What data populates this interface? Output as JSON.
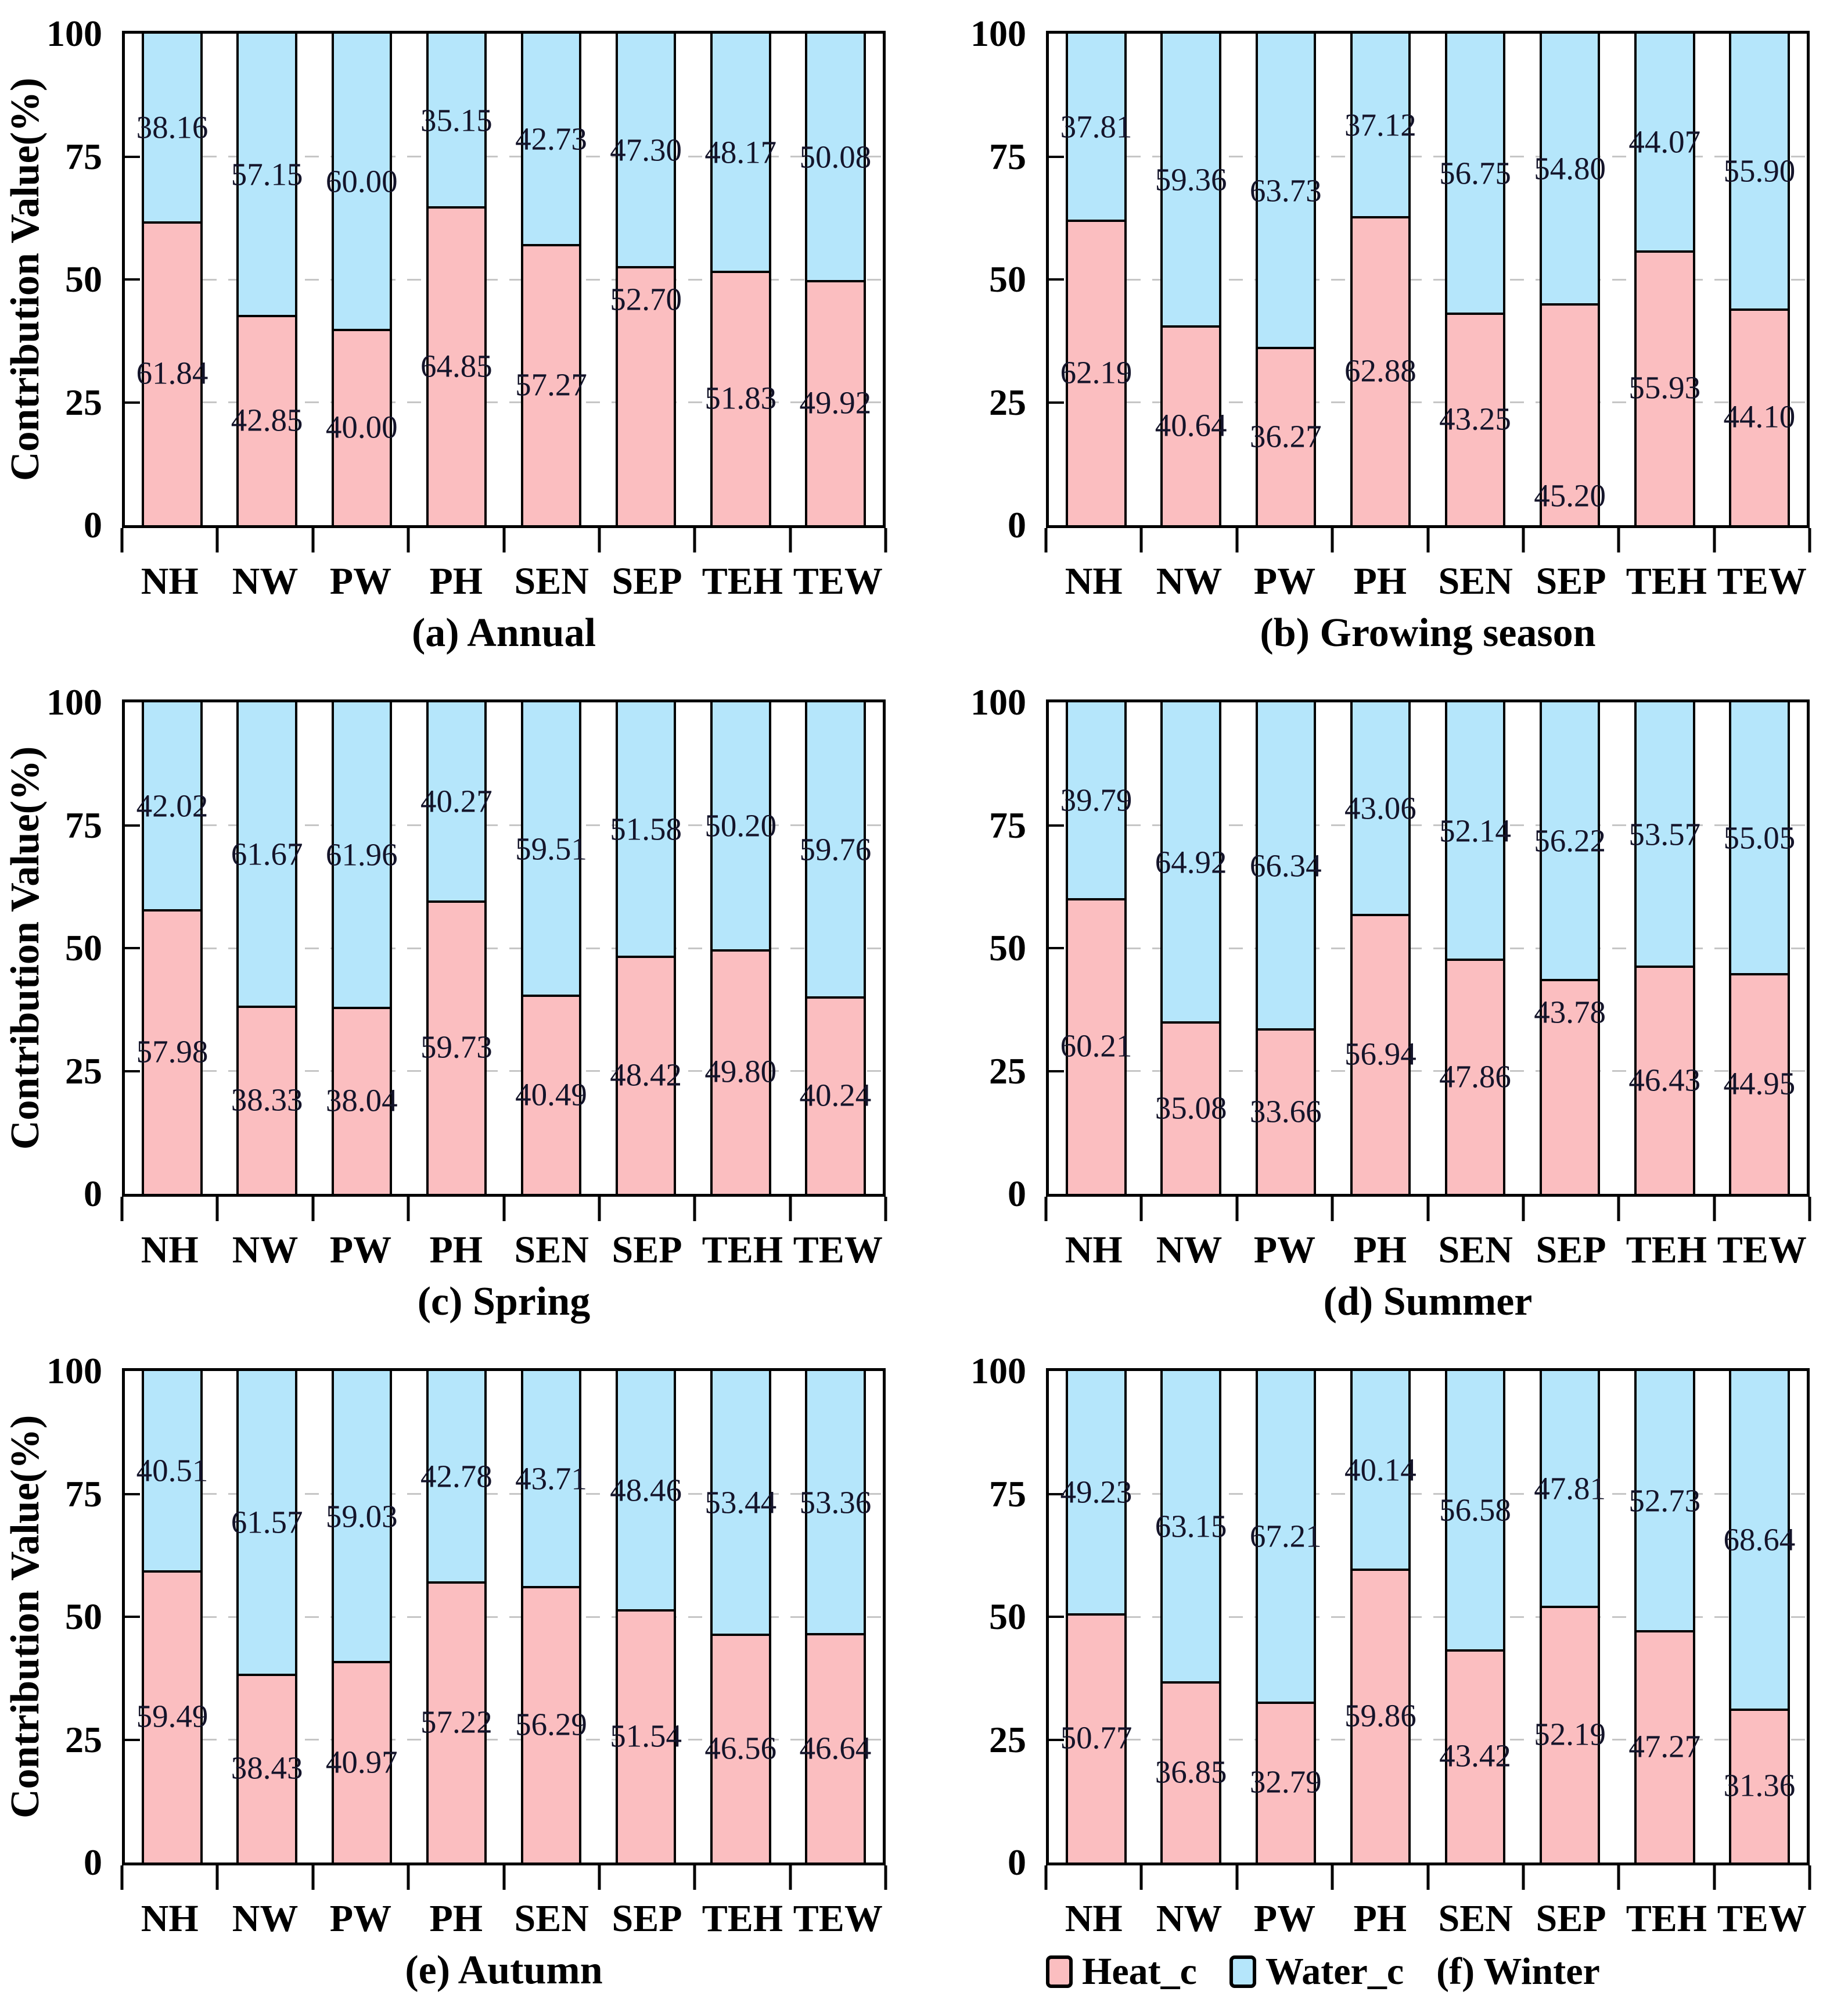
{
  "figure": {
    "background": "#ffffff",
    "rows": 3,
    "cols": 2
  },
  "colors": {
    "heat_c": "#FBBEC0",
    "water_c": "#B5E6FB",
    "bar_border": "#000000",
    "grid": "#c6c6c6",
    "axis_text": "#000000",
    "value_label_text": "#14142a"
  },
  "axis": {
    "y_label": "Contribution Value(%)",
    "y_ticks": [
      0,
      25,
      50,
      75,
      100
    ],
    "grid_values": [
      25,
      50,
      75
    ],
    "ylim": [
      0,
      100
    ]
  },
  "legend": {
    "position": "bottom-of-panel-f",
    "items": [
      {
        "key": "heat_c",
        "label": "Heat_c"
      },
      {
        "key": "water_c",
        "label": "Water_c"
      }
    ]
  },
  "chart_data": [
    {
      "type": "bar",
      "stacked": true,
      "title": "(a) Annual",
      "ylabel": "Contribution Value(%)",
      "ylim": [
        0,
        100
      ],
      "grid": true,
      "categories": [
        "NH",
        "NW",
        "PW",
        "PH",
        "SEN",
        "SEP",
        "TEH",
        "TEW"
      ],
      "series": [
        {
          "name": "Heat_c",
          "values": [
            61.84,
            42.85,
            40.0,
            64.85,
            57.27,
            52.7,
            51.83,
            49.92
          ]
        },
        {
          "name": "Water_c",
          "values": [
            38.16,
            57.15,
            60.0,
            35.15,
            42.73,
            47.3,
            48.17,
            50.08
          ]
        }
      ],
      "heat_label_pos": {
        "5": 46
      }
    },
    {
      "type": "bar",
      "stacked": true,
      "title": "(b) Growing season",
      "ylabel": "Contribution Value(%)",
      "ylim": [
        0,
        100
      ],
      "grid": true,
      "categories": [
        "NH",
        "NW",
        "PW",
        "PH",
        "SEN",
        "SEP",
        "TEH",
        "TEW"
      ],
      "series": [
        {
          "name": "Heat_c",
          "values": [
            62.19,
            40.64,
            36.27,
            62.88,
            43.25,
            45.2,
            55.93,
            44.1
          ]
        },
        {
          "name": "Water_c",
          "values": [
            37.81,
            59.36,
            63.73,
            37.12,
            56.75,
            54.8,
            44.07,
            55.9
          ]
        }
      ],
      "heat_label_pos": {
        "5": 6
      }
    },
    {
      "type": "bar",
      "stacked": true,
      "title": "(c) Spring",
      "ylabel": "Contribution Value(%)",
      "ylim": [
        0,
        100
      ],
      "grid": true,
      "categories": [
        "NH",
        "NW",
        "PW",
        "PH",
        "SEN",
        "SEP",
        "TEH",
        "TEW"
      ],
      "series": [
        {
          "name": "Heat_c",
          "values": [
            57.98,
            38.33,
            38.04,
            59.73,
            40.49,
            48.42,
            49.8,
            40.24
          ]
        },
        {
          "name": "Water_c",
          "values": [
            42.02,
            61.67,
            61.96,
            40.27,
            59.51,
            51.58,
            50.2,
            59.76
          ]
        }
      ],
      "heat_label_pos": {}
    },
    {
      "type": "bar",
      "stacked": true,
      "title": "(d) Summer",
      "ylabel": "Contribution Value(%)",
      "ylim": [
        0,
        100
      ],
      "grid": true,
      "categories": [
        "NH",
        "NW",
        "PW",
        "PH",
        "SEN",
        "SEP",
        "TEH",
        "TEW"
      ],
      "series": [
        {
          "name": "Heat_c",
          "values": [
            60.21,
            35.08,
            33.66,
            56.94,
            47.86,
            43.78,
            46.43,
            44.95
          ]
        },
        {
          "name": "Water_c",
          "values": [
            39.79,
            64.92,
            66.34,
            43.06,
            52.14,
            56.22,
            53.57,
            55.05
          ]
        }
      ],
      "heat_label_pos": {
        "5": 37
      }
    },
    {
      "type": "bar",
      "stacked": true,
      "title": "(e) Autumn",
      "ylabel": "Contribution Value(%)",
      "ylim": [
        0,
        100
      ],
      "grid": true,
      "categories": [
        "NH",
        "NW",
        "PW",
        "PH",
        "SEN",
        "SEP",
        "TEH",
        "TEW"
      ],
      "series": [
        {
          "name": "Heat_c",
          "values": [
            59.49,
            38.43,
            40.97,
            57.22,
            56.29,
            51.54,
            46.56,
            46.64
          ]
        },
        {
          "name": "Water_c",
          "values": [
            40.51,
            61.57,
            59.03,
            42.78,
            43.71,
            48.46,
            53.44,
            53.36
          ]
        }
      ],
      "heat_label_pos": {}
    },
    {
      "type": "bar",
      "stacked": true,
      "title": "(f) Winter",
      "ylabel": "Contribution Value(%)",
      "ylim": [
        0,
        100
      ],
      "grid": true,
      "categories": [
        "NH",
        "NW",
        "PW",
        "PH",
        "SEN",
        "SEP",
        "TEH",
        "TEW"
      ],
      "series": [
        {
          "name": "Heat_c",
          "values": [
            50.77,
            36.85,
            32.79,
            59.86,
            43.42,
            52.19,
            47.27,
            31.36
          ]
        },
        {
          "name": "Water_c",
          "values": [
            49.23,
            63.15,
            67.21,
            40.14,
            56.58,
            47.81,
            52.73,
            68.64
          ]
        }
      ],
      "heat_label_pos": {}
    }
  ]
}
